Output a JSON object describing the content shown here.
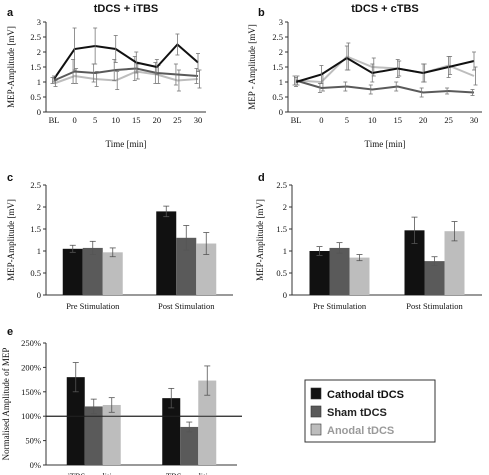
{
  "colors": {
    "cathodal": "#111111",
    "sham": "#5a5a5a",
    "anodal": "#bdbdbd",
    "axis": "#333333"
  },
  "legend": [
    {
      "label": "Cathodal tDCS",
      "color": "#111111",
      "text_color": "#111111"
    },
    {
      "label": "Sham tDCS",
      "color": "#5a5a5a",
      "text_color": "#222222"
    },
    {
      "label": "Anodal tDCS",
      "color": "#bdbdbd",
      "text_color": "#9a9a9a"
    }
  ],
  "chart_data": [
    {
      "id": "a",
      "letter": "a",
      "type": "line",
      "title": "tDCS + iTBS",
      "xlabel": "Time [min]",
      "ylabel": "MEP-Amplitude [mV]",
      "x": [
        "BL",
        "0",
        "5",
        "10",
        "15",
        "20",
        "25",
        "30"
      ],
      "ylim": [
        0,
        3
      ],
      "yticks": [
        "0",
        "0.5",
        "1",
        "1.5",
        "2",
        "2.5",
        "3"
      ],
      "series": [
        {
          "key": "cathodal",
          "values": [
            1.1,
            2.1,
            2.2,
            2.1,
            1.65,
            1.5,
            2.25,
            1.65
          ],
          "errors": [
            0.1,
            0.7,
            0.6,
            0.45,
            0.35,
            0.25,
            0.35,
            0.3
          ]
        },
        {
          "key": "sham",
          "values": [
            1.05,
            1.35,
            1.3,
            1.4,
            1.45,
            1.3,
            1.25,
            1.2
          ],
          "errors": [
            0.1,
            0.4,
            0.3,
            0.35,
            0.4,
            0.35,
            0.35,
            0.25
          ]
        },
        {
          "key": "anodal",
          "values": [
            0.95,
            1.2,
            1.1,
            1.05,
            1.35,
            1.25,
            1.05,
            1.1
          ],
          "errors": [
            0.1,
            0.25,
            0.25,
            0.3,
            0.25,
            0.3,
            0.35,
            0.3
          ]
        }
      ]
    },
    {
      "id": "b",
      "letter": "b",
      "type": "line",
      "title": "tDCS + cTBS",
      "xlabel": "Time [min]",
      "ylabel": "MEP - Amplitude [mV]",
      "x": [
        "BL",
        "0",
        "5",
        "10",
        "15",
        "20",
        "25",
        "30"
      ],
      "ylim": [
        0,
        3
      ],
      "yticks": [
        "0",
        "0.5",
        "1",
        "1.5",
        "2",
        "2.5",
        "3"
      ],
      "series": [
        {
          "key": "cathodal",
          "values": [
            1.0,
            1.25,
            1.8,
            1.3,
            1.45,
            1.3,
            1.5,
            1.7
          ],
          "errors": [
            0.15,
            0.3,
            0.4,
            0.3,
            0.3,
            0.3,
            0.35,
            0.3
          ]
        },
        {
          "key": "sham",
          "values": [
            1.05,
            0.8,
            0.85,
            0.75,
            0.85,
            0.65,
            0.7,
            0.65
          ],
          "errors": [
            0.15,
            0.15,
            0.15,
            0.15,
            0.15,
            0.15,
            0.1,
            0.1
          ]
        },
        {
          "key": "anodal",
          "values": [
            1.05,
            1.0,
            1.85,
            1.5,
            1.45,
            1.3,
            1.55,
            1.2
          ],
          "errors": [
            0.15,
            0.3,
            0.45,
            0.3,
            0.25,
            0.3,
            0.3,
            0.3
          ]
        }
      ]
    },
    {
      "id": "c",
      "letter": "c",
      "type": "bar",
      "ylabel": "MEP-Amplitude [mV]",
      "categories": [
        "Pre Stimulation",
        "Post Stimulation"
      ],
      "ylim": [
        0,
        2.5
      ],
      "yticks": [
        "0",
        "0.5",
        "1",
        "1.5",
        "2",
        "2.5"
      ],
      "series": [
        {
          "key": "cathodal",
          "values": [
            1.05,
            1.9
          ],
          "errors": [
            0.08,
            0.12
          ]
        },
        {
          "key": "sham",
          "values": [
            1.07,
            1.3
          ],
          "errors": [
            0.15,
            0.28
          ]
        },
        {
          "key": "anodal",
          "values": [
            0.97,
            1.17
          ],
          "errors": [
            0.1,
            0.25
          ]
        }
      ]
    },
    {
      "id": "d",
      "letter": "d",
      "type": "bar",
      "ylabel": "MEP-Amplitude [mV]",
      "categories": [
        "Pre Stimulation",
        "Post Stimulation"
      ],
      "ylim": [
        0,
        2.5
      ],
      "yticks": [
        "0",
        "0.5",
        "1",
        "1.5",
        "2",
        "2.5"
      ],
      "series": [
        {
          "key": "cathodal",
          "values": [
            1.0,
            1.47
          ],
          "errors": [
            0.1,
            0.3
          ]
        },
        {
          "key": "sham",
          "values": [
            1.07,
            0.77
          ],
          "errors": [
            0.12,
            0.1
          ]
        },
        {
          "key": "anodal",
          "values": [
            0.85,
            1.45
          ],
          "errors": [
            0.07,
            0.22
          ]
        }
      ]
    },
    {
      "id": "e",
      "letter": "e",
      "type": "bar",
      "ylabel": "Normalised Amplitude of MEP",
      "categories": [
        "iTBS-condition",
        "cTBS-condition"
      ],
      "ylim": [
        0,
        250
      ],
      "yticks": [
        "0%",
        "50%",
        "100%",
        "150%",
        "200%",
        "250%"
      ],
      "reference_line": 100,
      "series": [
        {
          "key": "cathodal",
          "values": [
            180,
            137
          ],
          "errors": [
            30,
            20
          ]
        },
        {
          "key": "sham",
          "values": [
            120,
            78
          ],
          "errors": [
            15,
            10
          ]
        },
        {
          "key": "anodal",
          "values": [
            123,
            173
          ],
          "errors": [
            15,
            30
          ]
        }
      ]
    }
  ]
}
